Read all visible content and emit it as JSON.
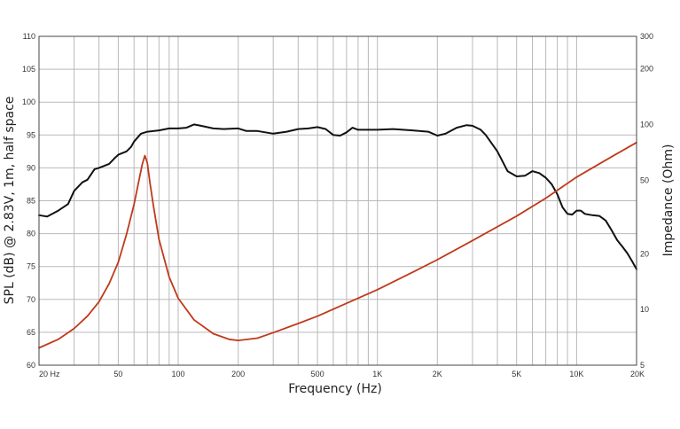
{
  "chart_data": {
    "type": "line",
    "xlabel": "Frequency (Hz)",
    "ylabel": "SPL (dB) @ 2.83V, 1m, half space",
    "y2label": "Impedance (Ohm)",
    "x_scale": "log",
    "xlim": [
      20,
      20000
    ],
    "ylim": [
      60,
      110
    ],
    "y2_scale": "log",
    "y2lim": [
      5,
      300
    ],
    "grid": true,
    "x_tick_labels": [
      {
        "value": 20,
        "label": "20  Hz"
      },
      {
        "value": 50,
        "label": "50"
      },
      {
        "value": 100,
        "label": "100"
      },
      {
        "value": 200,
        "label": "200"
      },
      {
        "value": 500,
        "label": "500"
      },
      {
        "value": 1000,
        "label": "1K"
      },
      {
        "value": 2000,
        "label": "2K"
      },
      {
        "value": 5000,
        "label": "5K"
      },
      {
        "value": 10000,
        "label": "10K"
      },
      {
        "value": 20000,
        "label": "20K"
      }
    ],
    "y_tick_labels": [
      "60",
      "65",
      "70",
      "75",
      "80",
      "85",
      "90",
      "95",
      "100",
      "105",
      "110"
    ],
    "y2_tick_labels": [
      {
        "value": 5,
        "label": "5"
      },
      {
        "value": 10,
        "label": "10"
      },
      {
        "value": 20,
        "label": "20"
      },
      {
        "value": 50,
        "label": "50"
      },
      {
        "value": 100,
        "label": "100"
      },
      {
        "value": 200,
        "label": "200"
      },
      {
        "value": 300,
        "label": "300"
      }
    ],
    "series": [
      {
        "axis": "left",
        "color": "#111111",
        "x": [
          20,
          22,
          25,
          28,
          30,
          33,
          35,
          38,
          40,
          45,
          48,
          50,
          55,
          58,
          60,
          65,
          70,
          80,
          90,
          100,
          110,
          120,
          130,
          150,
          170,
          200,
          220,
          250,
          300,
          350,
          400,
          450,
          500,
          550,
          600,
          650,
          700,
          750,
          800,
          900,
          1000,
          1200,
          1500,
          1800,
          2000,
          2200,
          2500,
          2800,
          3000,
          3300,
          3500,
          4000,
          4500,
          5000,
          5500,
          6000,
          6500,
          7000,
          7500,
          8000,
          8500,
          9000,
          9500,
          10000,
          10500,
          11000,
          12000,
          13000,
          14000,
          15000,
          16000,
          17000,
          18000,
          19000,
          20000
        ],
        "y": [
          82.8,
          82.6,
          83.5,
          84.5,
          86.5,
          87.8,
          88.2,
          89.8,
          90.0,
          90.6,
          91.5,
          92.0,
          92.5,
          93.2,
          94.0,
          95.2,
          95.5,
          95.7,
          96.0,
          96.0,
          96.1,
          96.6,
          96.4,
          96.0,
          95.9,
          96.0,
          95.6,
          95.6,
          95.2,
          95.5,
          95.9,
          96.0,
          96.2,
          95.9,
          95.0,
          94.9,
          95.4,
          96.1,
          95.8,
          95.8,
          95.8,
          95.9,
          95.7,
          95.5,
          94.9,
          95.2,
          96.1,
          96.5,
          96.4,
          95.8,
          95.0,
          92.5,
          89.5,
          88.7,
          88.8,
          89.5,
          89.2,
          88.5,
          87.5,
          86.0,
          84.0,
          83.0,
          82.9,
          83.5,
          83.5,
          83.0,
          82.8,
          82.7,
          82.0,
          80.5,
          79.0,
          78.0,
          77.0,
          75.8,
          74.6
        ]
      },
      {
        "axis": "right",
        "color": "#c0391b",
        "x": [
          20,
          25,
          30,
          35,
          40,
          45,
          50,
          55,
          60,
          63,
          66,
          68,
          70,
          72,
          75,
          80,
          90,
          100,
          120,
          150,
          180,
          200,
          250,
          300,
          400,
          500,
          700,
          1000,
          1500,
          2000,
          3000,
          5000,
          7000,
          10000,
          15000,
          20000
        ],
        "y": [
          6.2,
          6.9,
          7.9,
          9.2,
          11.0,
          13.8,
          18.0,
          25.5,
          37.0,
          48.0,
          61.0,
          68.0,
          62.0,
          49.0,
          36.5,
          24.0,
          15.0,
          11.5,
          8.8,
          7.4,
          6.9,
          6.8,
          7.0,
          7.5,
          8.4,
          9.2,
          10.8,
          12.8,
          15.9,
          18.6,
          23.6,
          32.0,
          40.0,
          52.0,
          67.0,
          80.0
        ]
      }
    ]
  }
}
